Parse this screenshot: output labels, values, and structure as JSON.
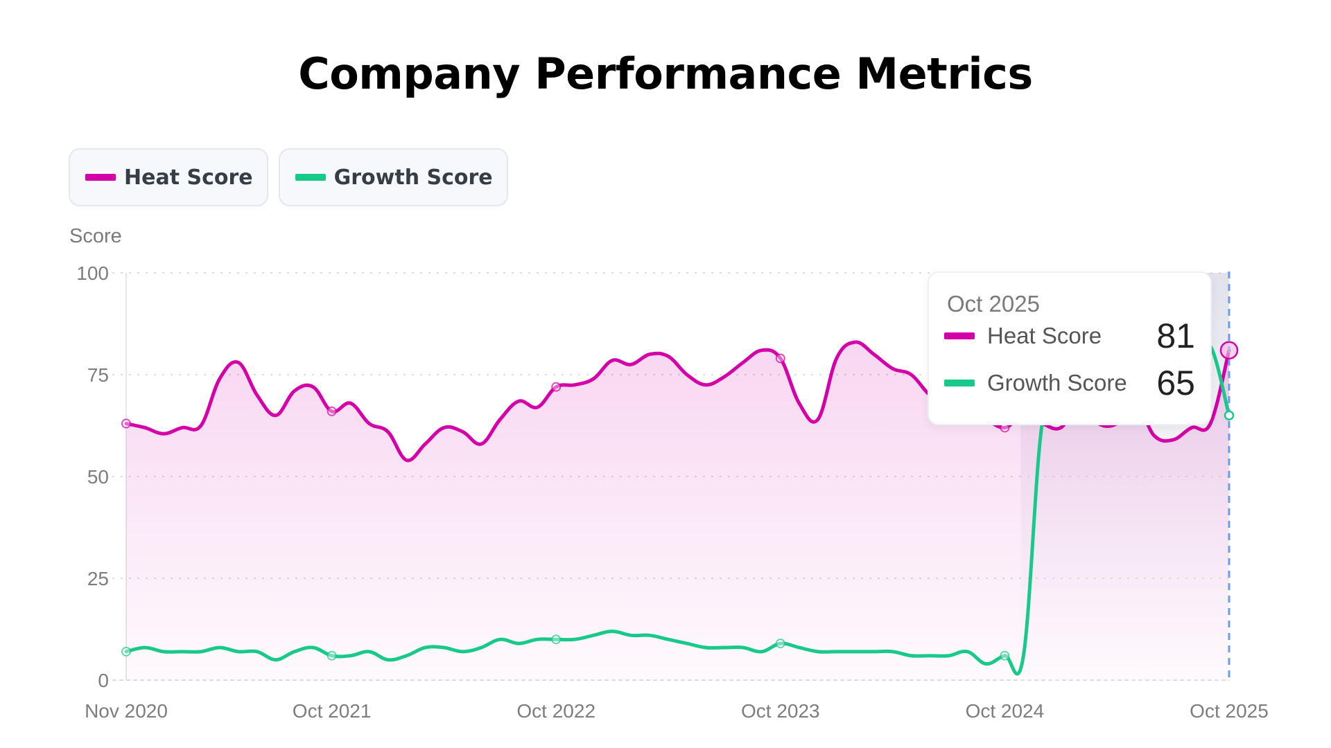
{
  "title": "Company Performance Metrics",
  "legend": [
    {
      "label": "Heat Score",
      "color": "#d400a8"
    },
    {
      "label": "Growth Score",
      "color": "#19c98a"
    }
  ],
  "tooltip": {
    "date": "Oct 2025",
    "rows": [
      {
        "label": "Heat Score",
        "value": "81",
        "color": "#d400a8"
      },
      {
        "label": "Growth Score",
        "value": "65",
        "color": "#19c98a"
      }
    ]
  },
  "colors": {
    "heat": "#d400a8",
    "growth": "#19c98a",
    "crosshair": "#6a9de8",
    "grid": "#dddddd"
  },
  "chart_data": {
    "type": "line",
    "title": "Company Performance Metrics",
    "xlabel": "",
    "ylabel": "Score",
    "ylim": [
      0,
      100
    ],
    "yticks": [
      0,
      25,
      50,
      75,
      100
    ],
    "xtick_labels": [
      "Nov 2020",
      "Oct 2021",
      "Oct 2022",
      "Oct 2023",
      "Oct 2024",
      "Oct 2025"
    ],
    "xtick_indices": [
      0,
      11,
      23,
      35,
      47,
      59
    ],
    "x": [
      "Nov 2020",
      "Dec 2020",
      "Jan 2021",
      "Feb 2021",
      "Mar 2021",
      "Apr 2021",
      "May 2021",
      "Jun 2021",
      "Jul 2021",
      "Aug 2021",
      "Sep 2021",
      "Oct 2021",
      "Nov 2021",
      "Dec 2021",
      "Jan 2022",
      "Feb 2022",
      "Mar 2022",
      "Apr 2022",
      "May 2022",
      "Jun 2022",
      "Jul 2022",
      "Aug 2022",
      "Sep 2022",
      "Oct 2022",
      "Nov 2022",
      "Dec 2022",
      "Jan 2023",
      "Feb 2023",
      "Mar 2023",
      "Apr 2023",
      "May 2023",
      "Jun 2023",
      "Jul 2023",
      "Aug 2023",
      "Sep 2023",
      "Oct 2023",
      "Nov 2023",
      "Dec 2023",
      "Jan 2024",
      "Feb 2024",
      "Mar 2024",
      "Apr 2024",
      "May 2024",
      "Jun 2024",
      "Jul 2024",
      "Aug 2024",
      "Sep 2024",
      "Oct 2024",
      "Nov 2024",
      "Dec 2024",
      "Jan 2025",
      "Feb 2025",
      "Mar 2025",
      "Apr 2025",
      "May 2025",
      "Jun 2025",
      "Jul 2025",
      "Aug 2025",
      "Sep 2025",
      "Oct 2025"
    ],
    "series": [
      {
        "name": "Heat Score",
        "color": "#d400a8",
        "values": [
          63,
          62,
          60.5,
          62,
          62.5,
          74,
          78,
          70,
          65,
          71,
          72,
          66,
          68,
          63,
          61,
          54,
          58,
          62,
          61,
          58,
          64,
          68.5,
          67,
          72,
          72.5,
          74,
          78.5,
          77.5,
          80,
          79.5,
          75,
          72.5,
          74.5,
          78,
          81,
          79,
          68,
          64,
          79,
          83,
          80,
          76.5,
          75,
          70,
          68,
          66,
          64,
          62,
          65,
          63,
          62,
          68,
          63,
          63,
          68,
          60,
          59,
          62,
          63,
          81
        ]
      },
      {
        "name": "Growth Score",
        "color": "#19c98a",
        "values": [
          7,
          8,
          7,
          7,
          7,
          8,
          7,
          7,
          5,
          7,
          8,
          6,
          6,
          7,
          5,
          6,
          8,
          8,
          7,
          8,
          10,
          9,
          10,
          10,
          10,
          11,
          12,
          11,
          11,
          10,
          9,
          8,
          8,
          8,
          7,
          9,
          8,
          7,
          7,
          7,
          7,
          7,
          6,
          6,
          6,
          7,
          4,
          6,
          6,
          63,
          66,
          68,
          70,
          72,
          74,
          76,
          78,
          80,
          82,
          65
        ]
      }
    ],
    "markers": [
      0,
      11,
      23,
      35,
      47
    ],
    "highlight_index": 59,
    "shaded_region_from_index": 48,
    "legend_position": "top-left",
    "grid": true
  }
}
